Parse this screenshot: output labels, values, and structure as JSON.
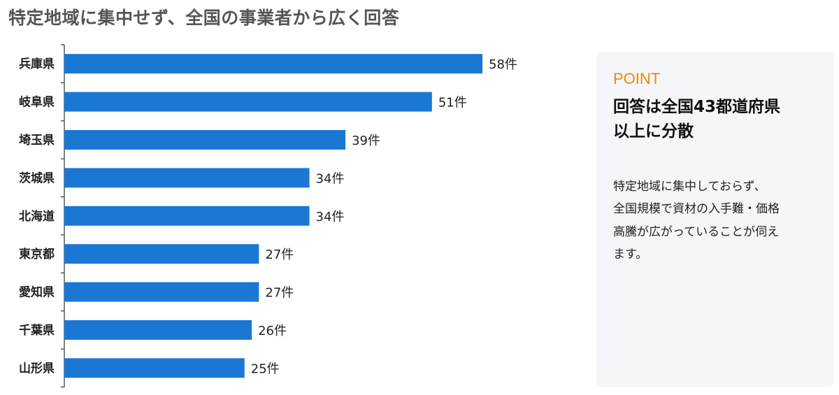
{
  "headline": "特定地域に集中せず、全国の事業者から広く回答",
  "colors": {
    "bar": "#1a78d4",
    "axis": "#333333",
    "accent": "#f08a00",
    "card_bg": "#f5f6fa"
  },
  "chart_data": {
    "type": "bar",
    "orientation": "horizontal",
    "title": "",
    "xlabel": "",
    "ylabel": "",
    "categories": [
      "兵庫県",
      "岐阜県",
      "埼玉県",
      "茨城県",
      "北海道",
      "東京都",
      "愛知県",
      "千葉県",
      "山形県"
    ],
    "values": [
      58,
      51,
      39,
      34,
      34,
      27,
      27,
      26,
      25
    ],
    "value_labels": [
      "58件",
      "51件",
      "39件",
      "34件",
      "34件",
      "27件",
      "27件",
      "26件",
      "25件"
    ],
    "unit": "件",
    "xlim": [
      0,
      58
    ],
    "grid": false,
    "legend": "none"
  },
  "point": {
    "label": "POINT",
    "title_lines": [
      "回答は全国43都道府県",
      "以上に分散"
    ],
    "body_lines": [
      "特定地域に集中しておらず、",
      "全国規模で資材の入手難・価格",
      "高騰が広がっていることが伺え",
      "ます。"
    ]
  }
}
